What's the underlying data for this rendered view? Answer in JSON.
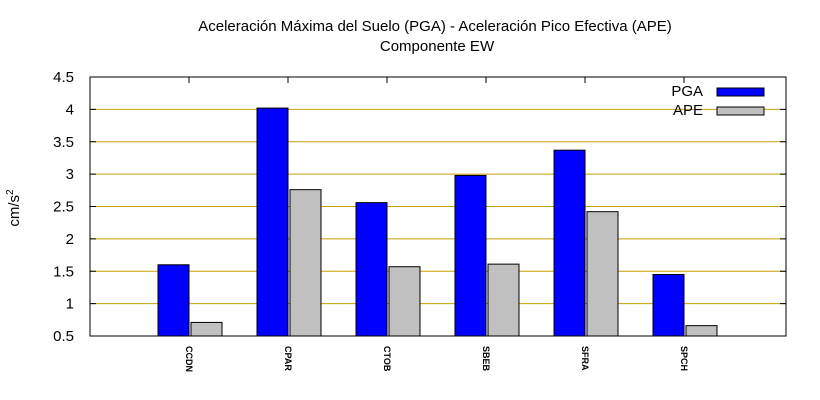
{
  "chart_data": {
    "type": "bar",
    "title": "Aceleración Máxima del Suelo (PGA) -  Aceleración Pico Efectiva (APE)",
    "subtitle": "Componente EW",
    "xlabel": "",
    "ylabel_base": "cm/s",
    "ylabel_exp": "2",
    "ylim": [
      0.5,
      4.5
    ],
    "yticks": [
      0.5,
      1,
      1.5,
      2,
      2.5,
      3,
      3.5,
      4,
      4.5
    ],
    "ytick_labels": [
      "0.5",
      "1",
      "1.5",
      "2",
      "2.5",
      "3",
      "3.5",
      "4",
      "4.5"
    ],
    "grid": true,
    "legend_position": "top-right",
    "categories": [
      "CCDN",
      "CPAR",
      "CTOB",
      "SBEB",
      "SFRA",
      "SPCH"
    ],
    "series": [
      {
        "name": "PGA",
        "color": "#0000ff",
        "values": [
          1.6,
          4.02,
          2.56,
          2.98,
          3.37,
          1.45
        ]
      },
      {
        "name": "APE",
        "color": "#c0c0c0",
        "values": [
          0.71,
          2.76,
          1.57,
          1.61,
          2.42,
          0.66
        ]
      }
    ],
    "grid_color": "#c8a000"
  }
}
